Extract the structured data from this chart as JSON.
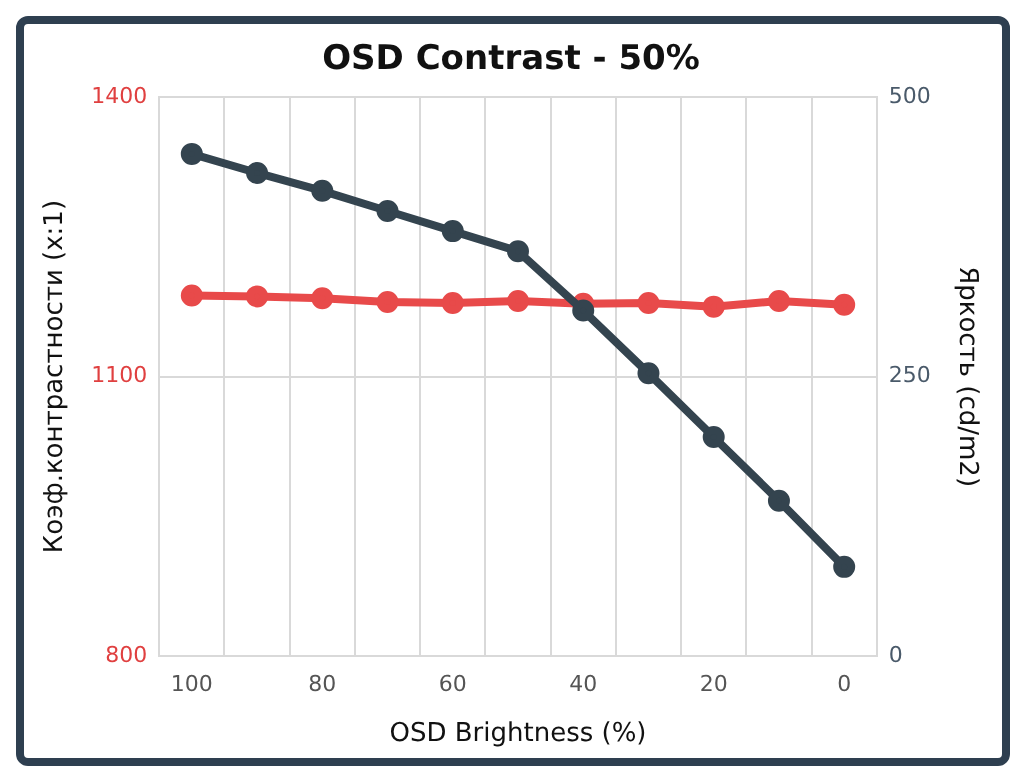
{
  "chart_data": {
    "type": "line",
    "title": "OSD Contrast - 50%",
    "xlabel": "OSD Brightness (%)",
    "ylabel": "Коэф.контрастности (x:1)",
    "y2label": "Яркость (cd/m2)",
    "categories": [
      "100",
      null,
      "80",
      null,
      "60",
      null,
      "40",
      null,
      "20",
      null,
      "0"
    ],
    "series": [
      {
        "color": "#e84a4a",
        "values": [
          1187,
          1186,
          1184,
          1180,
          1179,
          1181,
          1178,
          1179,
          1175,
          1181,
          1177
        ]
      },
      {
        "color": "#34444f",
        "axis": "y2",
        "values": [
          449,
          432,
          416,
          398,
          380,
          362,
          309,
          253,
          196,
          139,
          80
        ]
      }
    ],
    "ylim": [
      800,
      1400
    ],
    "yticks": [
      800,
      1100,
      1400
    ],
    "y2lim": [
      0,
      500
    ],
    "y2ticks": [
      0,
      250,
      500
    ],
    "grid": true,
    "legend": false,
    "marker": "circle",
    "line_style": "solid"
  }
}
